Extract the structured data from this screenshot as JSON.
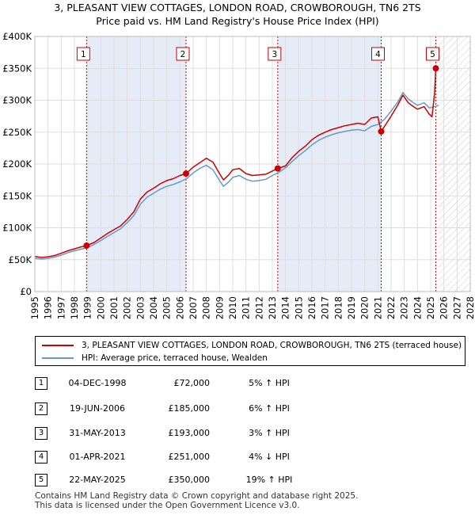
{
  "title_line1": "3, PLEASANT VIEW COTTAGES, LONDON ROAD, CROWBOROUGH, TN6 2TS",
  "title_line2": "Price paid vs. HM Land Registry's House Price Index (HPI)",
  "chart_data": {
    "type": "line",
    "xlim": [
      1995,
      2028
    ],
    "ylim": [
      0,
      400000
    ],
    "x_ticks": [
      "1995",
      "1996",
      "1997",
      "1998",
      "1999",
      "2000",
      "2001",
      "2002",
      "2003",
      "2004",
      "2005",
      "2006",
      "2007",
      "2008",
      "2009",
      "2010",
      "2011",
      "2012",
      "2013",
      "2014",
      "2015",
      "2016",
      "2017",
      "2018",
      "2019",
      "2020",
      "2021",
      "2022",
      "2023",
      "2024",
      "2025",
      "2026",
      "2027",
      "2028"
    ],
    "y_ticks": [
      {
        "v": 0,
        "label": "£0"
      },
      {
        "v": 50000,
        "label": "£50K"
      },
      {
        "v": 100000,
        "label": "£100K"
      },
      {
        "v": 150000,
        "label": "£150K"
      },
      {
        "v": 200000,
        "label": "£200K"
      },
      {
        "v": 250000,
        "label": "£250K"
      },
      {
        "v": 300000,
        "label": "£300K"
      },
      {
        "v": 350000,
        "label": "£350K"
      },
      {
        "v": 400000,
        "label": "£400K"
      }
    ],
    "shaded_spans": [
      [
        1998.92,
        2006.46
      ],
      [
        2013.41,
        2021.25
      ]
    ],
    "hatch_from": 2025.6,
    "series": [
      {
        "name": "3, PLEASANT VIEW COTTAGES, LONDON ROAD, CROWBOROUGH, TN6 2TS (terraced house)",
        "color": "#cc0000",
        "points": [
          [
            1995.0,
            55000
          ],
          [
            1995.5,
            53500
          ],
          [
            1996.0,
            54500
          ],
          [
            1996.5,
            56500
          ],
          [
            1997.0,
            60000
          ],
          [
            1997.5,
            64000
          ],
          [
            1998.0,
            67000
          ],
          [
            1998.5,
            70000
          ],
          [
            1998.92,
            72000
          ],
          [
            1999.5,
            77000
          ],
          [
            2000.0,
            84000
          ],
          [
            2000.5,
            91000
          ],
          [
            2001.0,
            97000
          ],
          [
            2001.5,
            103000
          ],
          [
            2002.0,
            113000
          ],
          [
            2002.5,
            125000
          ],
          [
            2003.0,
            145000
          ],
          [
            2003.5,
            156000
          ],
          [
            2004.0,
            162000
          ],
          [
            2004.5,
            169000
          ],
          [
            2005.0,
            174000
          ],
          [
            2005.5,
            177000
          ],
          [
            2006.0,
            182000
          ],
          [
            2006.46,
            185000
          ],
          [
            2007.0,
            195000
          ],
          [
            2007.5,
            202000
          ],
          [
            2008.0,
            209000
          ],
          [
            2008.5,
            203000
          ],
          [
            2009.0,
            185000
          ],
          [
            2009.3,
            175000
          ],
          [
            2009.7,
            183000
          ],
          [
            2010.0,
            191000
          ],
          [
            2010.5,
            193000
          ],
          [
            2011.0,
            185000
          ],
          [
            2011.5,
            182000
          ],
          [
            2012.0,
            183000
          ],
          [
            2012.5,
            184000
          ],
          [
            2013.0,
            189000
          ],
          [
            2013.41,
            193000
          ],
          [
            2014.0,
            197000
          ],
          [
            2014.5,
            210000
          ],
          [
            2015.0,
            220000
          ],
          [
            2015.5,
            228000
          ],
          [
            2016.0,
            238000
          ],
          [
            2016.5,
            245000
          ],
          [
            2017.0,
            250000
          ],
          [
            2017.5,
            254000
          ],
          [
            2018.0,
            257000
          ],
          [
            2018.5,
            260000
          ],
          [
            2019.0,
            262000
          ],
          [
            2019.5,
            264000
          ],
          [
            2020.0,
            262000
          ],
          [
            2020.5,
            272000
          ],
          [
            2021.0,
            274000
          ],
          [
            2021.25,
            251000
          ],
          [
            2021.6,
            262000
          ],
          [
            2022.0,
            275000
          ],
          [
            2022.5,
            292000
          ],
          [
            2022.9,
            308000
          ],
          [
            2023.3,
            296000
          ],
          [
            2023.7,
            290000
          ],
          [
            2024.0,
            286000
          ],
          [
            2024.5,
            290000
          ],
          [
            2024.9,
            278000
          ],
          [
            2025.1,
            274000
          ],
          [
            2025.3,
            312000
          ],
          [
            2025.39,
            350000
          ]
        ]
      },
      {
        "name": "HPI: Average price, terraced house, Wealden",
        "color": "#6699cc",
        "points": [
          [
            1995.0,
            52000
          ],
          [
            1995.5,
            51000
          ],
          [
            1996.0,
            52000
          ],
          [
            1996.5,
            54000
          ],
          [
            1997.0,
            57000
          ],
          [
            1997.5,
            61000
          ],
          [
            1998.0,
            64000
          ],
          [
            1998.5,
            66500
          ],
          [
            1999.0,
            69000
          ],
          [
            1999.5,
            74000
          ],
          [
            2000.0,
            80000
          ],
          [
            2000.5,
            86500
          ],
          [
            2001.0,
            92500
          ],
          [
            2001.5,
            98500
          ],
          [
            2002.0,
            108000
          ],
          [
            2002.5,
            119000
          ],
          [
            2003.0,
            137000
          ],
          [
            2003.5,
            148000
          ],
          [
            2004.0,
            154000
          ],
          [
            2004.5,
            160500
          ],
          [
            2005.0,
            165000
          ],
          [
            2005.5,
            168000
          ],
          [
            2006.0,
            172000
          ],
          [
            2006.5,
            177000
          ],
          [
            2007.0,
            186000
          ],
          [
            2007.5,
            193000
          ],
          [
            2008.0,
            198000
          ],
          [
            2008.5,
            191000
          ],
          [
            2009.0,
            174000
          ],
          [
            2009.3,
            165000
          ],
          [
            2009.7,
            172000
          ],
          [
            2010.0,
            179000
          ],
          [
            2010.5,
            182000
          ],
          [
            2011.0,
            176000
          ],
          [
            2011.5,
            173000
          ],
          [
            2012.0,
            174000
          ],
          [
            2012.5,
            176000
          ],
          [
            2013.0,
            182000
          ],
          [
            2013.5,
            187000
          ],
          [
            2014.0,
            194000
          ],
          [
            2014.5,
            204000
          ],
          [
            2015.0,
            213000
          ],
          [
            2015.5,
            221000
          ],
          [
            2016.0,
            230000
          ],
          [
            2016.5,
            237000
          ],
          [
            2017.0,
            242000
          ],
          [
            2017.5,
            246000
          ],
          [
            2018.0,
            249000
          ],
          [
            2018.5,
            251000
          ],
          [
            2019.0,
            253000
          ],
          [
            2019.5,
            254000
          ],
          [
            2020.0,
            252000
          ],
          [
            2020.5,
            259000
          ],
          [
            2021.0,
            262000
          ],
          [
            2021.5,
            270000
          ],
          [
            2022.0,
            283000
          ],
          [
            2022.5,
            297000
          ],
          [
            2022.9,
            312000
          ],
          [
            2023.3,
            302000
          ],
          [
            2023.7,
            296000
          ],
          [
            2024.0,
            292000
          ],
          [
            2024.5,
            296000
          ],
          [
            2024.9,
            288000
          ],
          [
            2025.3,
            290000
          ],
          [
            2025.6,
            292000
          ]
        ]
      }
    ],
    "sales": [
      {
        "label": "1",
        "x": 1998.92,
        "value": 72000
      },
      {
        "label": "2",
        "x": 2006.46,
        "value": 185000
      },
      {
        "label": "3",
        "x": 2013.41,
        "value": 193000
      },
      {
        "label": "4",
        "x": 2021.25,
        "value": 251000
      },
      {
        "label": "5",
        "x": 2025.39,
        "value": 350000
      }
    ]
  },
  "legend": {
    "property": "3, PLEASANT VIEW COTTAGES, LONDON ROAD, CROWBOROUGH, TN6 2TS (terraced house)",
    "hpi": "HPI: Average price, terraced house, Wealden"
  },
  "transactions": [
    {
      "num": "1",
      "date": "04-DEC-1998",
      "price": "£72,000",
      "hpi": "5% ↑ HPI"
    },
    {
      "num": "2",
      "date": "19-JUN-2006",
      "price": "£185,000",
      "hpi": "6% ↑ HPI"
    },
    {
      "num": "3",
      "date": "31-MAY-2013",
      "price": "£193,000",
      "hpi": "3% ↑ HPI"
    },
    {
      "num": "4",
      "date": "01-APR-2021",
      "price": "£251,000",
      "hpi": "4% ↓ HPI"
    },
    {
      "num": "5",
      "date": "22-MAY-2025",
      "price": "£350,000",
      "hpi": "19% ↑ HPI"
    }
  ],
  "footer_line1": "Contains HM Land Registry data © Crown copyright and database right 2025.",
  "footer_line2": "This data is licensed under the Open Government Licence v3.0."
}
